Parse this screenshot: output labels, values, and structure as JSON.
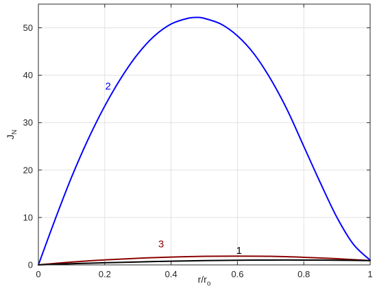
{
  "chart_data": {
    "type": "line",
    "title": "",
    "xlabel": {
      "main": "r/r",
      "sub": "o"
    },
    "ylabel": {
      "main": "J",
      "sub": "N"
    },
    "xlim": [
      0,
      1
    ],
    "ylim": [
      0,
      55
    ],
    "xticks": [
      0,
      0.2,
      0.4,
      0.6,
      0.8,
      1
    ],
    "yticks": [
      0,
      10,
      20,
      30,
      40,
      50
    ],
    "xtick_labels": [
      "0",
      "0.2",
      "0.4",
      "0.6",
      "0.8",
      "1"
    ],
    "ytick_labels": [
      "0",
      "10",
      "20",
      "30",
      "40",
      "50"
    ],
    "grid": true,
    "series": [
      {
        "label": "2",
        "color": "#0000ff",
        "label_at": [
          0.21,
          37
        ],
        "x": [
          0,
          0.05,
          0.1,
          0.15,
          0.2,
          0.25,
          0.3,
          0.35,
          0.4,
          0.45,
          0.48,
          0.5,
          0.55,
          0.6,
          0.65,
          0.7,
          0.75,
          0.8,
          0.85,
          0.9,
          0.95,
          1
        ],
        "y": [
          0,
          9.5,
          18.5,
          26.5,
          33.5,
          39.5,
          44.5,
          48.3,
          50.8,
          52.0,
          52.2,
          52.0,
          50.8,
          48.3,
          44.5,
          39.2,
          32.7,
          25.0,
          17.3,
          10.0,
          4.3,
          1.0
        ]
      },
      {
        "label": "3",
        "color": "#8b0000",
        "label_at": [
          0.37,
          3.7
        ],
        "x": [
          0,
          0.1,
          0.2,
          0.3,
          0.4,
          0.5,
          0.6,
          0.7,
          0.8,
          0.9,
          1
        ],
        "y": [
          0,
          0.6,
          1.05,
          1.4,
          1.65,
          1.8,
          1.85,
          1.8,
          1.6,
          1.3,
          0.9
        ]
      },
      {
        "label": "1",
        "color": "#000000",
        "label_at": [
          0.605,
          2.3
        ],
        "x": [
          0,
          0.1,
          0.2,
          0.3,
          0.4,
          0.5,
          0.6,
          0.7,
          0.8,
          0.9,
          1
        ],
        "y": [
          0,
          0.25,
          0.45,
          0.62,
          0.78,
          0.9,
          0.98,
          1.02,
          1.02,
          0.98,
          0.9
        ]
      }
    ]
  }
}
